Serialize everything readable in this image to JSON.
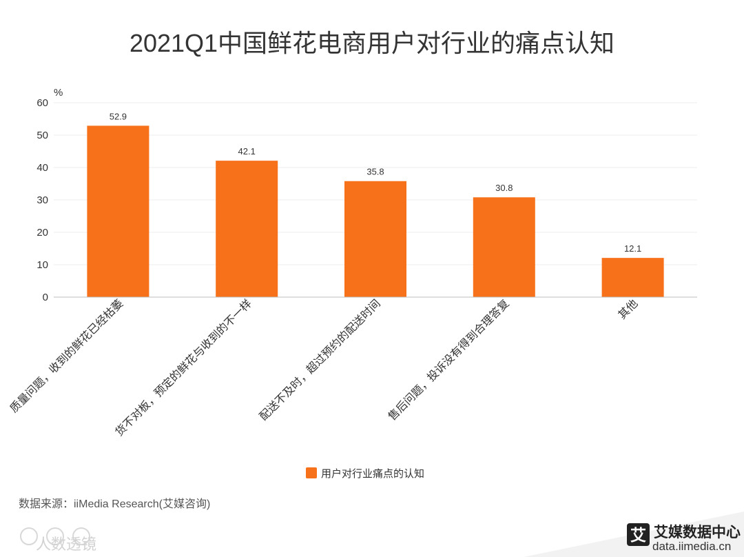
{
  "chart_data": {
    "type": "bar",
    "title": "2021Q1中国鲜花电商用户对行业的痛点认知",
    "unit": "%",
    "categories": [
      "质量问题，收到的鲜花已经枯萎",
      "货不对板，预定的鲜花与收到的不一样",
      "配送不及时，超过预约的配送时间",
      "售后问题，投诉没有得到合理答复",
      "其他"
    ],
    "series": [
      {
        "name": "用户对行业痛点的认知",
        "values": [
          52.9,
          42.1,
          35.8,
          30.8,
          12.1
        ]
      }
    ],
    "ylim": [
      0,
      60
    ],
    "yticks": [
      0,
      10,
      20,
      30,
      40,
      50,
      60
    ],
    "grid": true,
    "legend": "bottom-center",
    "bar_color": "#f7711b"
  },
  "footer": {
    "source": "数据来源：iiMedia Research(艾媒咨询)",
    "watermark": "人数透镜",
    "brand_icon_char": "艾",
    "brand_name": "艾媒数据中心",
    "brand_url": "data.iimedia.cn"
  }
}
